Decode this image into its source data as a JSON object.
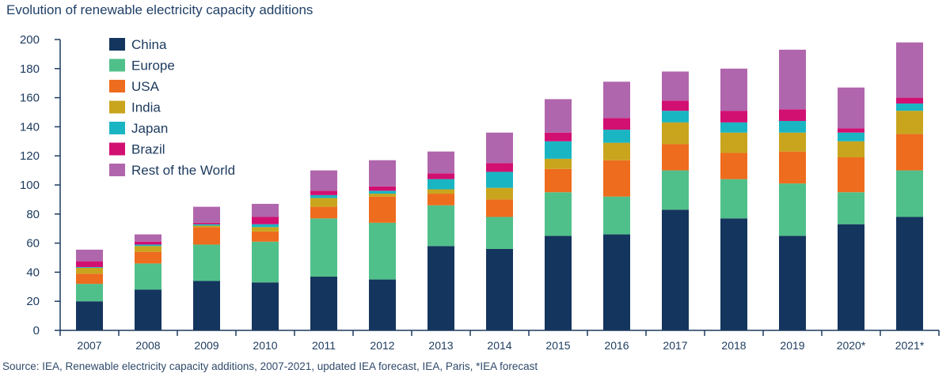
{
  "title": "Evolution of renewable electricity capacity additions",
  "source": "Source: IEA, Renewable electricity capacity additions, 2007-2021, updated IEA forecast, IEA, Paris, *IEA forecast",
  "chart_data": {
    "type": "bar",
    "stacked": true,
    "title": "Evolution of renewable electricity capacity additions",
    "xlabel": "",
    "ylabel": "",
    "ylim": [
      0,
      200
    ],
    "yticks": [
      0,
      20,
      40,
      60,
      80,
      100,
      120,
      140,
      160,
      180,
      200
    ],
    "grid": false,
    "legend_position": "top-left",
    "categories": [
      "2007",
      "2008",
      "2009",
      "2010",
      "2011",
      "2012",
      "2013",
      "2014",
      "2015",
      "2016",
      "2017",
      "2018",
      "2019",
      "2020*",
      "2021*"
    ],
    "series": [
      {
        "name": "China",
        "color": "#14355e",
        "values": [
          20,
          28,
          34,
          33,
          37,
          35,
          58,
          56,
          65,
          66,
          83,
          77,
          65,
          73,
          78
        ]
      },
      {
        "name": "Europe",
        "color": "#50c08a",
        "values": [
          12,
          18,
          25,
          28,
          40,
          39,
          28,
          22,
          30,
          26,
          27,
          27,
          36,
          22,
          32
        ]
      },
      {
        "name": "USA",
        "color": "#ee6c1e",
        "values": [
          7,
          8,
          12,
          7,
          8,
          18,
          8,
          12,
          16,
          25,
          18,
          18,
          22,
          24,
          25
        ]
      },
      {
        "name": "India",
        "color": "#c9a51e",
        "values": [
          4,
          4,
          1,
          3,
          6,
          2,
          3,
          8,
          7,
          12,
          15,
          14,
          13,
          11,
          16
        ]
      },
      {
        "name": "Japan",
        "color": "#1ab5c3",
        "values": [
          0.5,
          1,
          1,
          2,
          2,
          2,
          7,
          11,
          12,
          9,
          8,
          7,
          8,
          6,
          5
        ]
      },
      {
        "name": "Brazil",
        "color": "#d11072",
        "values": [
          4,
          2,
          1,
          5,
          3,
          3,
          4,
          6,
          6,
          8,
          7,
          8,
          8,
          3,
          4
        ]
      },
      {
        "name": "Rest of the World",
        "color": "#b066ad",
        "values": [
          8,
          5,
          11,
          9,
          14,
          18,
          15,
          21,
          23,
          25,
          20,
          29,
          41,
          28,
          38
        ]
      }
    ]
  }
}
